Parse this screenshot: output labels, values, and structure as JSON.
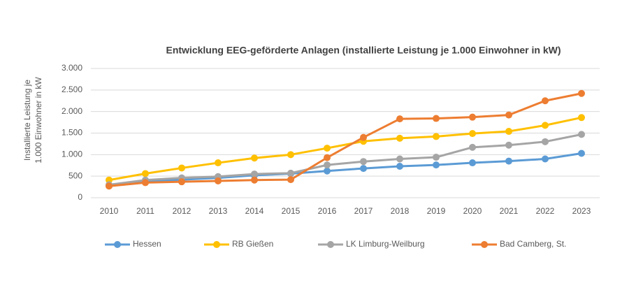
{
  "chart_data": {
    "type": "line",
    "title": "Entwicklung EEG-geförderte Anlagen (installierte Leistung je 1.000 Einwohner in kW)",
    "y_label": [
      "Installierte Leistung je",
      "1.000 Einwohner in kW"
    ],
    "categories": [
      "2010",
      "2011",
      "2012",
      "2013",
      "2014",
      "2015",
      "2016",
      "2017",
      "2018",
      "2019",
      "2020",
      "2021",
      "2022",
      "2023"
    ],
    "series": [
      {
        "name": "Hessen",
        "color": "#5b9bd5",
        "values": [
          280,
          380,
          420,
          460,
          520,
          560,
          620,
          680,
          730,
          760,
          810,
          850,
          900,
          1030
        ]
      },
      {
        "name": "RB Gießen",
        "color": "#ffc000",
        "values": [
          410,
          560,
          690,
          810,
          920,
          1000,
          1150,
          1310,
          1380,
          1420,
          1490,
          1540,
          1680,
          1860
        ]
      },
      {
        "name": "LK Limburg-Weilburg",
        "color": "#a5a5a5",
        "values": [
          300,
          410,
          460,
          490,
          550,
          570,
          760,
          840,
          900,
          940,
          1170,
          1220,
          1300,
          1470
        ]
      },
      {
        "name": "Bad Camberg, St.",
        "color": "#ed7d31",
        "values": [
          270,
          350,
          370,
          390,
          410,
          420,
          930,
          1400,
          1830,
          1840,
          1870,
          1920,
          2250,
          2420
        ]
      }
    ],
    "ylim": [
      0,
      3000
    ],
    "yticks": [
      0,
      500,
      {
        "value": 1000,
        "label": "1.000"
      },
      {
        "value": 1500,
        "label": "1.500"
      },
      {
        "value": 2000,
        "label": "2.000"
      },
      {
        "value": 2500,
        "label": "2.500"
      },
      {
        "value": 3000,
        "label": "3.000"
      }
    ],
    "grid": true,
    "legend": "bottom"
  }
}
